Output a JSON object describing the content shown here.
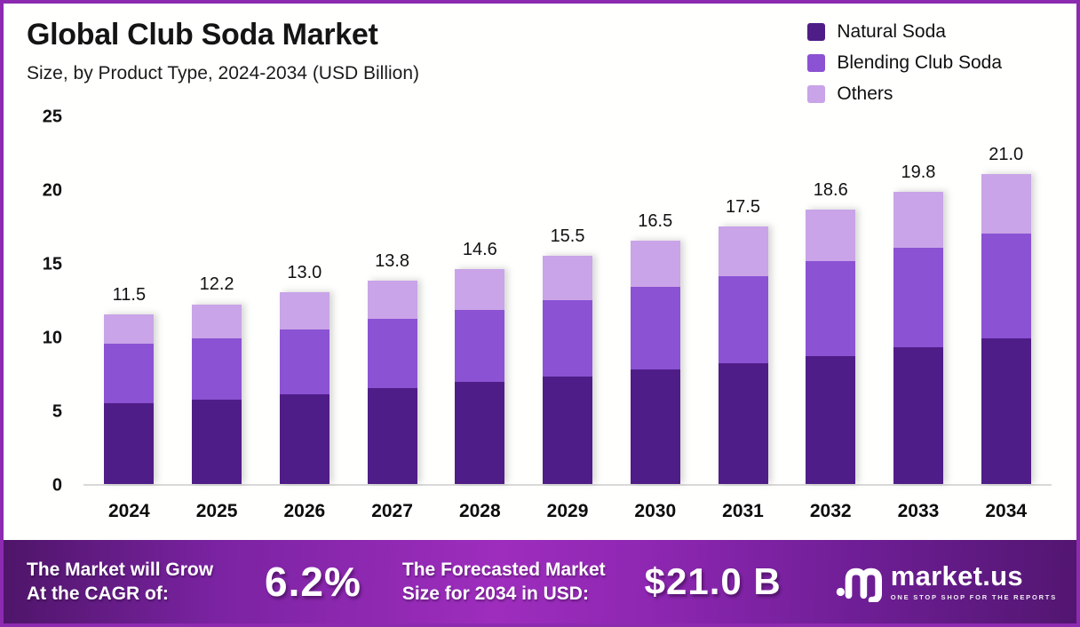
{
  "header": {
    "title": "Global Club Soda Market",
    "subtitle": "Size, by Product Type, 2024-2034 (USD Billion)"
  },
  "legend": [
    {
      "label": "Natural Soda",
      "color": "#4f1d87"
    },
    {
      "label": "Blending Club Soda",
      "color": "#8b52d3"
    },
    {
      "label": "Others",
      "color": "#c9a4e8"
    }
  ],
  "chart_data": {
    "type": "bar",
    "stacked": true,
    "title": "Global Club Soda Market Size, by Product Type, 2024-2034 (USD Billion)",
    "xlabel": "",
    "ylabel": "",
    "ylim": [
      0,
      25
    ],
    "y_ticks": [
      "25",
      "20",
      "15",
      "10",
      "5",
      "0"
    ],
    "grid": false,
    "legend_position": "top-right",
    "categories": [
      "2024",
      "2025",
      "2026",
      "2027",
      "2028",
      "2029",
      "2030",
      "2031",
      "2032",
      "2033",
      "2034"
    ],
    "series": [
      {
        "name": "Natural Soda",
        "color": "#4f1d87",
        "values": [
          5.5,
          5.7,
          6.1,
          6.5,
          6.9,
          7.3,
          7.8,
          8.2,
          8.7,
          9.3,
          9.9
        ]
      },
      {
        "name": "Blending Club Soda",
        "color": "#8b52d3",
        "values": [
          4.0,
          4.2,
          4.4,
          4.7,
          4.9,
          5.2,
          5.6,
          5.9,
          6.4,
          6.7,
          7.1
        ]
      },
      {
        "name": "Others",
        "color": "#c9a4e8",
        "values": [
          2.0,
          2.3,
          2.5,
          2.6,
          2.8,
          3.0,
          3.1,
          3.4,
          3.5,
          3.8,
          4.0
        ]
      }
    ],
    "totals": [
      11.5,
      12.2,
      13.0,
      13.8,
      14.6,
      15.5,
      16.5,
      17.5,
      18.6,
      19.8,
      21.0
    ],
    "totals_display": [
      "11.5",
      "12.2",
      "13.0",
      "13.8",
      "14.6",
      "15.5",
      "16.5",
      "17.5",
      "18.6",
      "19.8",
      "21.0"
    ]
  },
  "banner": {
    "cagr_label_line1": "The Market will Grow",
    "cagr_label_line2": "At the CAGR of:",
    "cagr_value": "6.2%",
    "forecast_label_line1": "The Forecasted Market",
    "forecast_label_line2": "Size for 2034 in USD:",
    "forecast_value": "$21.0 B",
    "logo_text": "market.us",
    "logo_tagline": "ONE STOP SHOP FOR THE REPORTS"
  },
  "colors": {
    "frame_border": "#8c2ab0",
    "background": "#fffffd",
    "baseline": "#d9d9d9",
    "banner_center": "#9e2dbd",
    "banner_edge": "#4e1569",
    "text": "#111111"
  }
}
